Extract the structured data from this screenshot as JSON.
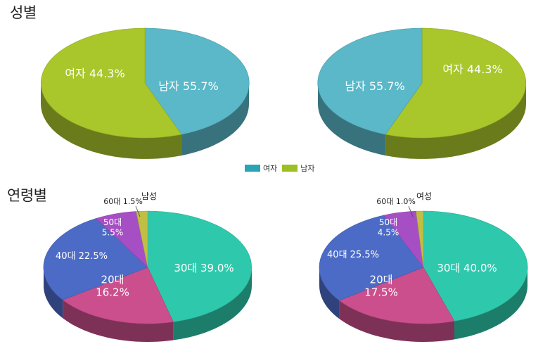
{
  "titles": {
    "gender": "성별",
    "age": "연령별"
  },
  "legend": [
    {
      "label": "여자",
      "color": "#2aa3b8"
    },
    {
      "label": "남자",
      "color": "#9cbf23"
    }
  ],
  "chart_data": [
    {
      "type": "pie",
      "title": "성별",
      "slices": [
        {
          "label": "여자",
          "value": 44.3,
          "text": "여자 44.3%",
          "color": "#5ab8c8"
        },
        {
          "label": "남자",
          "value": 55.7,
          "text": "남자 55.7%",
          "color": "#a9c62a"
        }
      ]
    },
    {
      "type": "pie",
      "title": "성별",
      "slices": [
        {
          "label": "남자",
          "value": 55.7,
          "text": "남자 55.7%",
          "color": "#a9c62a"
        },
        {
          "label": "여자",
          "value": 44.3,
          "text": "여자 44.3%",
          "color": "#5ab8c8"
        }
      ]
    },
    {
      "type": "pie",
      "title": "연령별",
      "group": "남성",
      "slices": [
        {
          "label": "30대",
          "value": 39.0,
          "text": "30대 39.0%",
          "color": "#2ec9ad"
        },
        {
          "label": "20대",
          "value": 16.2,
          "text": "20대\n16.2%",
          "color": "#cc4f8d"
        },
        {
          "label": "40대",
          "value": 22.5,
          "text": "40대 22.5%",
          "color": "#4c6bc6"
        },
        {
          "label": "50대",
          "value": 5.5,
          "text": "50대\n5.5%",
          "color": "#a64fc5"
        },
        {
          "label": "60대",
          "value": 1.5,
          "text": "60대 1.5%",
          "color": "#c0bf44"
        }
      ]
    },
    {
      "type": "pie",
      "title": "연령별",
      "group": "여성",
      "slices": [
        {
          "label": "30대",
          "value": 40.0,
          "text": "30대 40.0%",
          "color": "#2ec9ad"
        },
        {
          "label": "20대",
          "value": 17.5,
          "text": "20대\n17.5%",
          "color": "#cc4f8d"
        },
        {
          "label": "40대",
          "value": 25.5,
          "text": "40대 25.5%",
          "color": "#4c6bc6"
        },
        {
          "label": "50대",
          "value": 4.5,
          "text": "50대\n4.5%",
          "color": "#a64fc5"
        },
        {
          "label": "60대",
          "value": 1.0,
          "text": "60대 1.0%",
          "color": "#c0bf44"
        }
      ]
    }
  ]
}
